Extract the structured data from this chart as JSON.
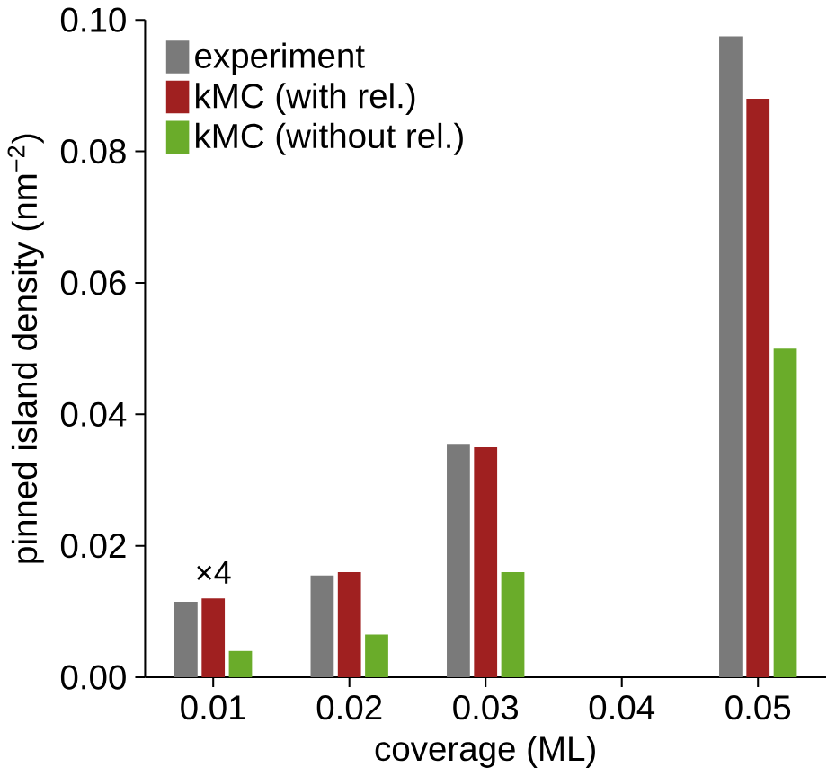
{
  "chart_data": {
    "type": "bar",
    "xlabel": "coverage (ML)",
    "ylabel": "pinned island density (nm$^{−2}$)",
    "categories": [
      "0.01",
      "0.02",
      "0.03",
      "0.04",
      "0.05"
    ],
    "series": [
      {
        "name": "experiment",
        "color": "#7a7a7a",
        "values": [
          0.0115,
          0.0155,
          0.0355,
          null,
          0.0975
        ]
      },
      {
        "name": "kMC (with rel.)",
        "color": "#a02020",
        "values": [
          0.012,
          0.016,
          0.035,
          null,
          0.088
        ]
      },
      {
        "name": "kMC (without rel.)",
        "color": "#6aac2a",
        "values": [
          0.004,
          0.0065,
          0.016,
          null,
          0.05
        ]
      }
    ],
    "ylim": [
      0,
      0.1
    ],
    "yticks": [
      {
        "value": 0,
        "label": "0.00"
      },
      {
        "value": 0.02,
        "label": "0.02"
      },
      {
        "value": 0.04,
        "label": "0.04"
      },
      {
        "value": 0.06,
        "label": "0.06"
      },
      {
        "value": 0.08,
        "label": "0.08"
      },
      {
        "value": 0.1,
        "label": "0.10"
      }
    ],
    "annotations": [
      "×4"
    ],
    "legend": "top left",
    "grid": false
  }
}
